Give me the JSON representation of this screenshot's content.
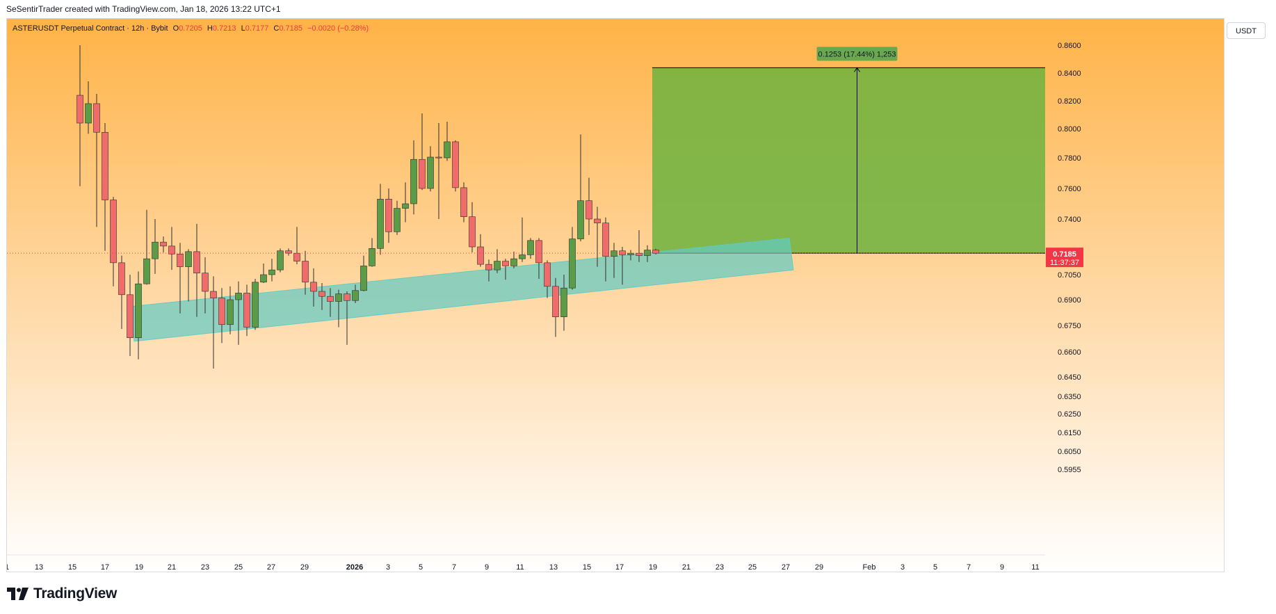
{
  "header": {
    "attribution": "SeSentirTrader created with TradingView.com, Jan 18, 2026 13:22 UTC+1"
  },
  "legend": {
    "symbol": "ASTERUSDT Perpetual Contract · 12h · Bybit",
    "open_label": "O",
    "open": "0.7205",
    "high_label": "H",
    "high": "0.7213",
    "low_label": "L",
    "low": "0.7177",
    "close_label": "C",
    "close": "0.7185",
    "change": "−0.0020 (−0.28%)"
  },
  "currency_button": "USDT",
  "price_marker": {
    "price": "0.7185",
    "countdown": "11:37:37"
  },
  "measure_label": "0.1253 (17.44%) 1,253",
  "footer": {
    "brand": "TradingView"
  },
  "colors": {
    "up": "#4caf50",
    "down": "#f23645",
    "up_body": "#5b9c47",
    "down_body": "#f26b6b",
    "channel": "#5fcbc4",
    "target_zone": "#6db33f",
    "bg_top": "#ffb347",
    "bg_bottom": "#ffffff"
  },
  "chart_data": {
    "type": "candlestick",
    "interval": "12h",
    "axis_ticks": [
      "0.8600",
      "0.8400",
      "0.8200",
      "0.8000",
      "0.7800",
      "0.7600",
      "0.7400",
      "0.7050",
      "0.6900",
      "0.6750",
      "0.6600",
      "0.6450",
      "0.6350",
      "0.6250",
      "0.6150",
      "0.6050",
      "0.5955"
    ],
    "x_labels": [
      "1",
      "13",
      "15",
      "17",
      "19",
      "21",
      "23",
      "25",
      "27",
      "29",
      "2026",
      "3",
      "5",
      "7",
      "9",
      "11",
      "13",
      "15",
      "17",
      "19",
      "21",
      "23",
      "25",
      "27",
      "29",
      "Feb",
      "3",
      "5",
      "7",
      "9",
      "11"
    ],
    "candles": [
      {
        "o": 0.824,
        "h": 0.86,
        "l": 0.7615,
        "c": 0.804
      },
      {
        "o": 0.804,
        "h": 0.834,
        "l": 0.7965,
        "c": 0.818
      },
      {
        "o": 0.818,
        "h": 0.825,
        "l": 0.735,
        "c": 0.7975
      },
      {
        "o": 0.7975,
        "h": 0.804,
        "l": 0.72,
        "c": 0.7525
      },
      {
        "o": 0.7525,
        "h": 0.7545,
        "l": 0.698,
        "c": 0.7125
      },
      {
        "o": 0.7125,
        "h": 0.717,
        "l": 0.673,
        "c": 0.693
      },
      {
        "o": 0.693,
        "h": 0.705,
        "l": 0.6575,
        "c": 0.668
      },
      {
        "o": 0.668,
        "h": 0.707,
        "l": 0.6555,
        "c": 0.6995
      },
      {
        "o": 0.6995,
        "h": 0.746,
        "l": 0.699,
        "c": 0.715
      },
      {
        "o": 0.715,
        "h": 0.74,
        "l": 0.7055,
        "c": 0.7255
      },
      {
        "o": 0.7255,
        "h": 0.729,
        "l": 0.719,
        "c": 0.723
      },
      {
        "o": 0.723,
        "h": 0.735,
        "l": 0.708,
        "c": 0.718
      },
      {
        "o": 0.718,
        "h": 0.725,
        "l": 0.682,
        "c": 0.71
      },
      {
        "o": 0.71,
        "h": 0.721,
        "l": 0.689,
        "c": 0.7195
      },
      {
        "o": 0.7195,
        "h": 0.737,
        "l": 0.68,
        "c": 0.706
      },
      {
        "o": 0.706,
        "h": 0.716,
        "l": 0.682,
        "c": 0.695
      },
      {
        "o": 0.695,
        "h": 0.704,
        "l": 0.65,
        "c": 0.691
      },
      {
        "o": 0.691,
        "h": 0.697,
        "l": 0.665,
        "c": 0.6755
      },
      {
        "o": 0.6755,
        "h": 0.698,
        "l": 0.67,
        "c": 0.69
      },
      {
        "o": 0.69,
        "h": 0.701,
        "l": 0.664,
        "c": 0.694
      },
      {
        "o": 0.694,
        "h": 0.699,
        "l": 0.669,
        "c": 0.674
      },
      {
        "o": 0.674,
        "h": 0.7025,
        "l": 0.6725,
        "c": 0.7005
      },
      {
        "o": 0.7005,
        "h": 0.712,
        "l": 0.7,
        "c": 0.705
      },
      {
        "o": 0.705,
        "h": 0.715,
        "l": 0.701,
        "c": 0.708
      },
      {
        "o": 0.708,
        "h": 0.7215,
        "l": 0.7065,
        "c": 0.72
      },
      {
        "o": 0.72,
        "h": 0.7215,
        "l": 0.717,
        "c": 0.7185
      },
      {
        "o": 0.7185,
        "h": 0.735,
        "l": 0.7115,
        "c": 0.7135
      },
      {
        "o": 0.7135,
        "h": 0.72,
        "l": 0.693,
        "c": 0.7005
      },
      {
        "o": 0.7005,
        "h": 0.709,
        "l": 0.686,
        "c": 0.695
      },
      {
        "o": 0.695,
        "h": 0.7,
        "l": 0.684,
        "c": 0.692
      },
      {
        "o": 0.692,
        "h": 0.697,
        "l": 0.68,
        "c": 0.689
      },
      {
        "o": 0.689,
        "h": 0.696,
        "l": 0.674,
        "c": 0.6935
      },
      {
        "o": 0.6935,
        "h": 0.695,
        "l": 0.664,
        "c": 0.6895
      },
      {
        "o": 0.6895,
        "h": 0.699,
        "l": 0.688,
        "c": 0.6955
      },
      {
        "o": 0.6955,
        "h": 0.717,
        "l": 0.695,
        "c": 0.7105
      },
      {
        "o": 0.7105,
        "h": 0.728,
        "l": 0.71,
        "c": 0.7215
      },
      {
        "o": 0.7215,
        "h": 0.763,
        "l": 0.7175,
        "c": 0.753
      },
      {
        "o": 0.753,
        "h": 0.76,
        "l": 0.725,
        "c": 0.732
      },
      {
        "o": 0.732,
        "h": 0.752,
        "l": 0.73,
        "c": 0.747
      },
      {
        "o": 0.747,
        "h": 0.764,
        "l": 0.738,
        "c": 0.75
      },
      {
        "o": 0.75,
        "h": 0.792,
        "l": 0.743,
        "c": 0.779
      },
      {
        "o": 0.779,
        "h": 0.811,
        "l": 0.759,
        "c": 0.76
      },
      {
        "o": 0.76,
        "h": 0.788,
        "l": 0.758,
        "c": 0.7805
      },
      {
        "o": 0.7805,
        "h": 0.804,
        "l": 0.74,
        "c": 0.78
      },
      {
        "o": 0.78,
        "h": 0.805,
        "l": 0.778,
        "c": 0.791
      },
      {
        "o": 0.791,
        "h": 0.792,
        "l": 0.758,
        "c": 0.7605
      },
      {
        "o": 0.7605,
        "h": 0.764,
        "l": 0.738,
        "c": 0.7415
      },
      {
        "o": 0.7415,
        "h": 0.751,
        "l": 0.719,
        "c": 0.7225
      },
      {
        "o": 0.7225,
        "h": 0.7305,
        "l": 0.71,
        "c": 0.7115
      },
      {
        "o": 0.7115,
        "h": 0.7145,
        "l": 0.701,
        "c": 0.708
      },
      {
        "o": 0.708,
        "h": 0.721,
        "l": 0.706,
        "c": 0.7135
      },
      {
        "o": 0.7135,
        "h": 0.715,
        "l": 0.702,
        "c": 0.7105
      },
      {
        "o": 0.7105,
        "h": 0.7195,
        "l": 0.709,
        "c": 0.715
      },
      {
        "o": 0.715,
        "h": 0.741,
        "l": 0.713,
        "c": 0.7175
      },
      {
        "o": 0.7175,
        "h": 0.728,
        "l": 0.715,
        "c": 0.7265
      },
      {
        "o": 0.7265,
        "h": 0.728,
        "l": 0.7025,
        "c": 0.7125
      },
      {
        "o": 0.7125,
        "h": 0.714,
        "l": 0.691,
        "c": 0.698
      },
      {
        "o": 0.698,
        "h": 0.703,
        "l": 0.6685,
        "c": 0.68
      },
      {
        "o": 0.68,
        "h": 0.705,
        "l": 0.672,
        "c": 0.697
      },
      {
        "o": 0.697,
        "h": 0.735,
        "l": 0.696,
        "c": 0.7275
      },
      {
        "o": 0.7275,
        "h": 0.796,
        "l": 0.726,
        "c": 0.752
      },
      {
        "o": 0.752,
        "h": 0.767,
        "l": 0.73,
        "c": 0.74
      },
      {
        "o": 0.74,
        "h": 0.748,
        "l": 0.71,
        "c": 0.7375
      },
      {
        "o": 0.7375,
        "h": 0.741,
        "l": 0.701,
        "c": 0.7165
      },
      {
        "o": 0.7165,
        "h": 0.725,
        "l": 0.703,
        "c": 0.72
      },
      {
        "o": 0.72,
        "h": 0.7225,
        "l": 0.699,
        "c": 0.7175
      },
      {
        "o": 0.7175,
        "h": 0.7205,
        "l": 0.714,
        "c": 0.7185
      },
      {
        "o": 0.7185,
        "h": 0.733,
        "l": 0.713,
        "c": 0.717
      },
      {
        "o": 0.717,
        "h": 0.7235,
        "l": 0.713,
        "c": 0.7205
      },
      {
        "o": 0.7205,
        "h": 0.7213,
        "l": 0.7177,
        "c": 0.7185
      }
    ],
    "channel": {
      "start": {
        "candle": 6,
        "low": 0.666,
        "high": 0.686
      },
      "end": {
        "candle": 85,
        "low": 0.708,
        "high": 0.728
      }
    },
    "target_zone": {
      "from_price": 0.7185,
      "to_price": 0.8438
    }
  }
}
